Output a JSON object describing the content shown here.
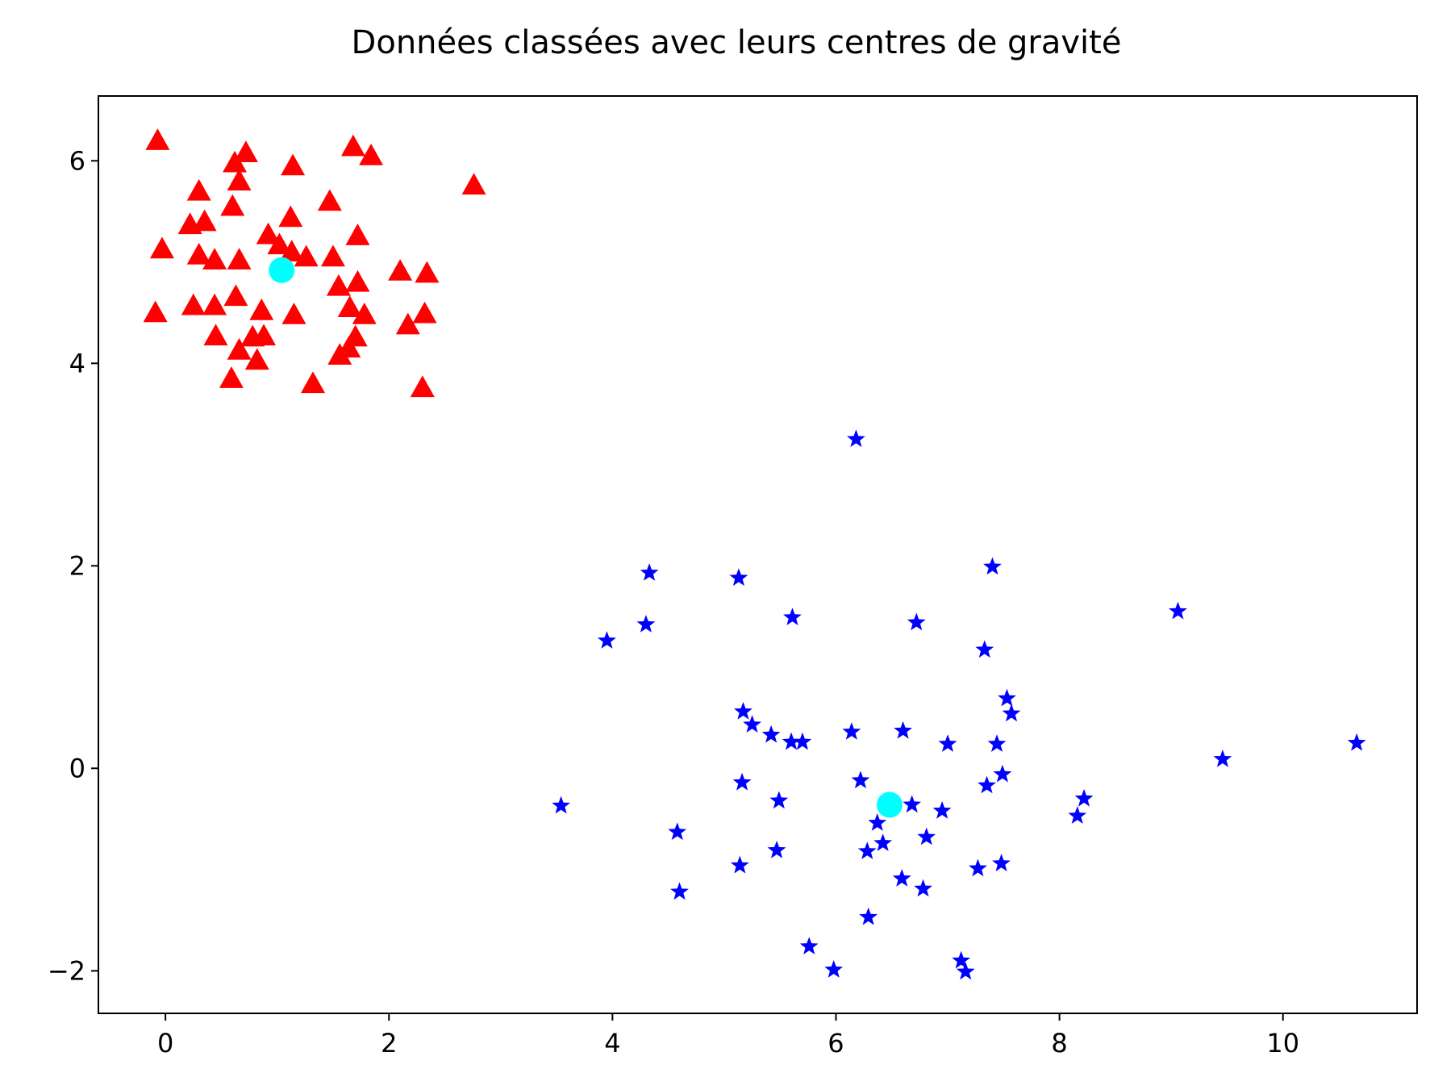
{
  "chart_data": {
    "type": "scatter",
    "title": "Données classées avec leurs centres de gravité",
    "xlabel": "",
    "ylabel": "",
    "xlim": [
      -0.6,
      11.2
    ],
    "ylim": [
      -2.42,
      6.64
    ],
    "xticks": [
      0,
      2,
      4,
      6,
      8,
      10
    ],
    "yticks": [
      -2,
      0,
      2,
      4,
      6
    ],
    "xtick_labels": [
      "0",
      "2",
      "4",
      "6",
      "8",
      "10"
    ],
    "ytick_labels": [
      "−2",
      "0",
      "2",
      "4",
      "6"
    ],
    "grid": false,
    "legend": "none",
    "series": [
      {
        "marker": "triangle",
        "color": "#ff0000",
        "points": [
          [
            -0.07,
            6.2
          ],
          [
            0.72,
            6.08
          ],
          [
            1.68,
            6.14
          ],
          [
            1.84,
            6.05
          ],
          [
            0.62,
            5.98
          ],
          [
            1.14,
            5.95
          ],
          [
            2.76,
            5.76
          ],
          [
            0.66,
            5.8
          ],
          [
            0.3,
            5.7
          ],
          [
            1.47,
            5.6
          ],
          [
            0.6,
            5.55
          ],
          [
            0.35,
            5.4
          ],
          [
            0.22,
            5.37
          ],
          [
            1.12,
            5.44
          ],
          [
            0.92,
            5.27
          ],
          [
            1.72,
            5.26
          ],
          [
            -0.03,
            5.13
          ],
          [
            0.3,
            5.07
          ],
          [
            0.44,
            5.02
          ],
          [
            0.66,
            5.02
          ],
          [
            1.02,
            5.17
          ],
          [
            1.13,
            5.1
          ],
          [
            1.26,
            5.05
          ],
          [
            1.5,
            5.05
          ],
          [
            2.1,
            4.91
          ],
          [
            2.34,
            4.89
          ],
          [
            1.55,
            4.76
          ],
          [
            1.72,
            4.8
          ],
          [
            0.63,
            4.66
          ],
          [
            -0.09,
            4.5
          ],
          [
            0.25,
            4.57
          ],
          [
            0.44,
            4.57
          ],
          [
            0.86,
            4.52
          ],
          [
            1.15,
            4.48
          ],
          [
            1.65,
            4.55
          ],
          [
            1.78,
            4.48
          ],
          [
            2.32,
            4.49
          ],
          [
            2.17,
            4.38
          ],
          [
            0.45,
            4.27
          ],
          [
            0.78,
            4.26
          ],
          [
            0.88,
            4.27
          ],
          [
            1.7,
            4.26
          ],
          [
            1.64,
            4.15
          ],
          [
            0.66,
            4.13
          ],
          [
            1.56,
            4.08
          ],
          [
            0.82,
            4.03
          ],
          [
            0.59,
            3.85
          ],
          [
            1.32,
            3.8
          ],
          [
            2.3,
            3.76
          ]
        ]
      },
      {
        "marker": "star",
        "color": "#0000ff",
        "points": [
          [
            6.18,
            3.25
          ],
          [
            7.4,
            1.99
          ],
          [
            4.33,
            1.93
          ],
          [
            5.13,
            1.88
          ],
          [
            9.06,
            1.55
          ],
          [
            5.61,
            1.49
          ],
          [
            6.72,
            1.44
          ],
          [
            4.3,
            1.42
          ],
          [
            3.95,
            1.26
          ],
          [
            7.33,
            1.17
          ],
          [
            7.53,
            0.69
          ],
          [
            5.17,
            0.56
          ],
          [
            7.57,
            0.54
          ],
          [
            5.25,
            0.43
          ],
          [
            5.42,
            0.33
          ],
          [
            6.14,
            0.36
          ],
          [
            6.6,
            0.37
          ],
          [
            5.6,
            0.26
          ],
          [
            5.7,
            0.26
          ],
          [
            7.0,
            0.24
          ],
          [
            7.44,
            0.24
          ],
          [
            10.66,
            0.25
          ],
          [
            9.46,
            0.09
          ],
          [
            7.49,
            -0.06
          ],
          [
            5.16,
            -0.14
          ],
          [
            6.22,
            -0.12
          ],
          [
            7.35,
            -0.17
          ],
          [
            5.49,
            -0.32
          ],
          [
            8.22,
            -0.3
          ],
          [
            3.54,
            -0.37
          ],
          [
            6.68,
            -0.36
          ],
          [
            6.95,
            -0.42
          ],
          [
            8.16,
            -0.47
          ],
          [
            6.37,
            -0.54
          ],
          [
            4.58,
            -0.63
          ],
          [
            6.81,
            -0.68
          ],
          [
            6.42,
            -0.74
          ],
          [
            6.28,
            -0.82
          ],
          [
            5.47,
            -0.81
          ],
          [
            5.14,
            -0.96
          ],
          [
            7.48,
            -0.94
          ],
          [
            7.27,
            -0.99
          ],
          [
            6.59,
            -1.09
          ],
          [
            6.78,
            -1.19
          ],
          [
            4.6,
            -1.22
          ],
          [
            6.29,
            -1.47
          ],
          [
            5.76,
            -1.76
          ],
          [
            7.12,
            -1.9
          ],
          [
            7.16,
            -2.01
          ],
          [
            5.98,
            -1.99
          ]
        ]
      },
      {
        "marker": "circle",
        "color": "#00ffff",
        "points": [
          [
            1.04,
            4.92
          ],
          [
            6.48,
            -0.36
          ]
        ]
      }
    ]
  }
}
